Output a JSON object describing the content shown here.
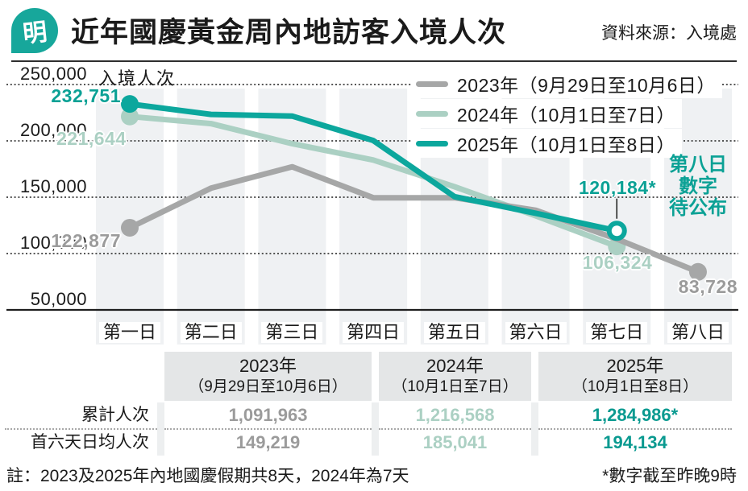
{
  "header": {
    "logo_char": "明",
    "title": "近年國慶黃金周內地訪客入境人次",
    "source": "資料來源：入境處"
  },
  "colors": {
    "teal": "#0ca79d",
    "teal_dark": "#0a9a90",
    "mint": "#abd0c3",
    "gray": "#a6a7a7",
    "number_gray": "#9b9b9b",
    "band": "#eff1f3",
    "table_header_bg": "#e4e6e7",
    "table_backdrop": "#edeff0",
    "axis_black": "#1e1e1e"
  },
  "chart_data": {
    "type": "line",
    "title": "近年國慶黃金周內地訪客入境人次",
    "unit_label": "入境人次",
    "categories": [
      "第一日",
      "第二日",
      "第三日",
      "第四日",
      "第五日",
      "第六日",
      "第七日",
      "第八日"
    ],
    "y_tick_labels": [
      "250,000",
      "200,000",
      "150,000",
      "100,000",
      "50,000"
    ],
    "y_tick_values": [
      250000,
      200000,
      150000,
      100000,
      50000
    ],
    "ylim": [
      50000,
      250000
    ],
    "grid": "horizontal-dotted",
    "legend_position": "top-right",
    "series": [
      {
        "name": "2023年（9月29日至10月6日）",
        "color": "#a6a7a7",
        "end_marker": "filled",
        "values": [
          122877,
          158000,
          177000,
          149500,
          149500,
          138437,
          112921,
          83728
        ]
      },
      {
        "name": "2024年（10月1日至7日）",
        "color": "#abd0c3",
        "end_marker": "filled",
        "values": [
          221644,
          215300,
          197500,
          183000,
          159300,
          133500,
          106324
        ]
      },
      {
        "name": "2025年（10月1日至8日）",
        "color": "#0ca79d",
        "end_marker": "open",
        "values": [
          232751,
          223500,
          222000,
          200300,
          150500,
          135751,
          120184
        ]
      }
    ],
    "point_labels": {
      "y2025_day1": "232,751",
      "y2024_day1": "221,644",
      "y2023_day1": "122,877",
      "y2025_day7": "120,184*",
      "y2024_day7": "106,324",
      "y2023_day8": "83,728"
    },
    "annotation_lines": [
      "第八日",
      "數字",
      "待公布"
    ]
  },
  "table": {
    "headers": [
      {
        "year": "2023年",
        "range": "（9月29日至10月6日）"
      },
      {
        "year": "2024年",
        "range": "（10月1日至7日）"
      },
      {
        "year": "2025年",
        "range": "（10月1日至8日）"
      }
    ],
    "rows": [
      {
        "label": "累計人次",
        "values": [
          "1,091,963",
          "1,216,568",
          "1,284,986*"
        ]
      },
      {
        "label": "首六天日均人次",
        "values": [
          "149,219",
          "185,041",
          "194,134"
        ]
      }
    ]
  },
  "footer": {
    "note": "註：2023及2025年內地國慶假期共8天，2024年為7天",
    "asterisk_note": "*數字截至昨晚9時"
  }
}
